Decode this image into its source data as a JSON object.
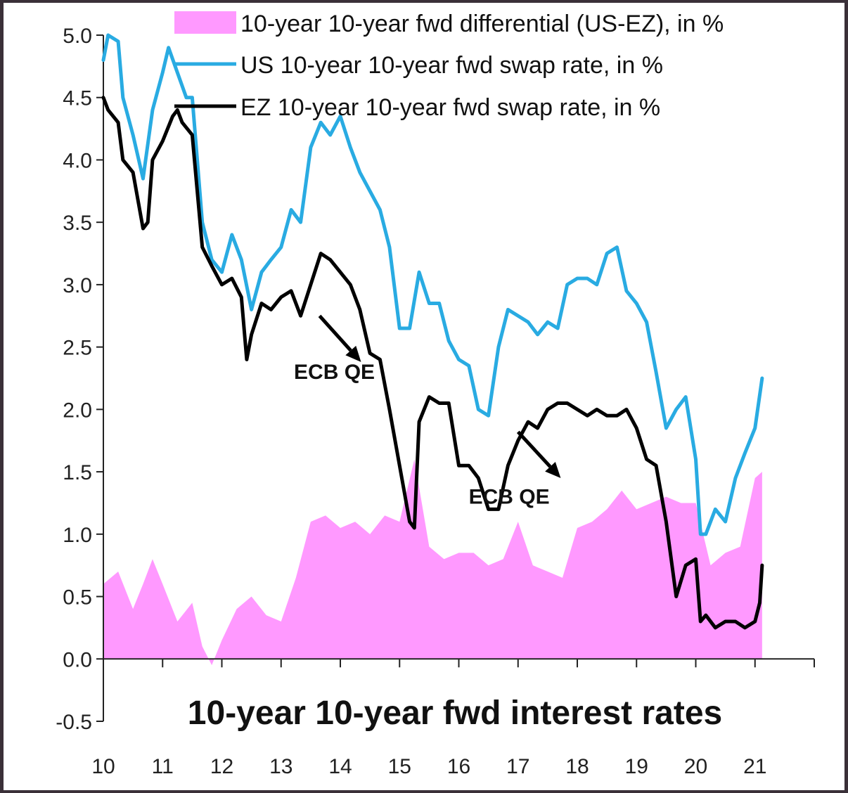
{
  "chart_data": {
    "type": "line",
    "title": "10-year 10-year fwd interest rates",
    "xlabel": "",
    "ylabel": "",
    "ylim": [
      -0.5,
      5.0
    ],
    "xlim": [
      2010,
      2022
    ],
    "yticks": [
      "-0.5",
      "0.0",
      "0.5",
      "1.0",
      "1.5",
      "2.0",
      "2.5",
      "3.0",
      "3.5",
      "4.0",
      "4.5",
      "5.0"
    ],
    "xticks": [
      "10",
      "11",
      "12",
      "13",
      "14",
      "15",
      "16",
      "17",
      "18",
      "19",
      "20",
      "21"
    ],
    "legend_position": "top-right",
    "colors": {
      "us": "#29abe2",
      "ez": "#000000",
      "diff": "#ff99ff",
      "axis": "#222222"
    },
    "series": [
      {
        "name": "10-year 10-year fwd differential (US-EZ), in %",
        "kind": "area",
        "x": [
          2010.0,
          2010.25,
          2010.5,
          2010.67,
          2010.83,
          2011.0,
          2011.25,
          2011.5,
          2011.67,
          2011.83,
          2012.0,
          2012.25,
          2012.5,
          2012.75,
          2013.0,
          2013.25,
          2013.5,
          2013.75,
          2014.0,
          2014.25,
          2014.5,
          2014.75,
          2015.0,
          2015.25,
          2015.5,
          2015.75,
          2016.0,
          2016.25,
          2016.5,
          2016.75,
          2017.0,
          2017.25,
          2017.5,
          2017.75,
          2018.0,
          2018.25,
          2018.5,
          2018.75,
          2019.0,
          2019.25,
          2019.5,
          2019.75,
          2020.0,
          2020.25,
          2020.5,
          2020.75,
          2021.0,
          2021.12
        ],
        "values": [
          0.6,
          0.7,
          0.4,
          0.6,
          0.8,
          0.6,
          0.3,
          0.45,
          0.1,
          -0.05,
          0.15,
          0.4,
          0.5,
          0.35,
          0.3,
          0.65,
          1.1,
          1.15,
          1.05,
          1.1,
          1.0,
          1.15,
          1.1,
          1.6,
          0.9,
          0.8,
          0.85,
          0.85,
          0.75,
          0.8,
          1.1,
          0.75,
          0.7,
          0.65,
          1.05,
          1.1,
          1.2,
          1.35,
          1.2,
          1.25,
          1.3,
          1.25,
          1.25,
          0.75,
          0.85,
          0.9,
          1.45,
          1.5
        ]
      },
      {
        "name": "US 10-year 10-year fwd swap rate, in %",
        "kind": "line",
        "x": [
          2010.0,
          2010.08,
          2010.25,
          2010.33,
          2010.5,
          2010.67,
          2010.83,
          2011.0,
          2011.1,
          2011.25,
          2011.4,
          2011.5,
          2011.67,
          2011.83,
          2012.0,
          2012.17,
          2012.33,
          2012.5,
          2012.67,
          2012.83,
          2013.0,
          2013.17,
          2013.33,
          2013.5,
          2013.67,
          2013.83,
          2014.0,
          2014.17,
          2014.33,
          2014.5,
          2014.67,
          2014.83,
          2015.0,
          2015.17,
          2015.33,
          2015.5,
          2015.67,
          2015.83,
          2016.0,
          2016.17,
          2016.33,
          2016.5,
          2016.67,
          2016.83,
          2017.0,
          2017.17,
          2017.33,
          2017.5,
          2017.67,
          2017.83,
          2018.0,
          2018.17,
          2018.33,
          2018.5,
          2018.67,
          2018.83,
          2019.0,
          2019.17,
          2019.33,
          2019.5,
          2019.67,
          2019.83,
          2020.0,
          2020.08,
          2020.17,
          2020.33,
          2020.5,
          2020.67,
          2020.83,
          2021.0,
          2021.12
        ],
        "values": [
          4.8,
          5.0,
          4.95,
          4.5,
          4.2,
          3.85,
          4.4,
          4.7,
          4.9,
          4.7,
          4.5,
          4.5,
          3.5,
          3.2,
          3.1,
          3.4,
          3.2,
          2.8,
          3.1,
          3.2,
          3.3,
          3.6,
          3.5,
          4.1,
          4.3,
          4.2,
          4.35,
          4.1,
          3.9,
          3.75,
          3.6,
          3.3,
          2.65,
          2.65,
          3.1,
          2.85,
          2.85,
          2.55,
          2.4,
          2.35,
          2.0,
          1.95,
          2.5,
          2.8,
          2.75,
          2.7,
          2.6,
          2.7,
          2.65,
          3.0,
          3.05,
          3.05,
          3.0,
          3.25,
          3.3,
          2.95,
          2.85,
          2.7,
          2.3,
          1.85,
          2.0,
          2.1,
          1.6,
          1.0,
          1.0,
          1.2,
          1.1,
          1.45,
          1.65,
          1.85,
          2.25
        ]
      },
      {
        "name": "EZ 10-year 10-year fwd swap rate, in %",
        "kind": "line",
        "x": [
          2010.0,
          2010.08,
          2010.25,
          2010.33,
          2010.5,
          2010.67,
          2010.75,
          2010.83,
          2011.0,
          2011.17,
          2011.25,
          2011.33,
          2011.5,
          2011.67,
          2011.83,
          2012.0,
          2012.17,
          2012.33,
          2012.42,
          2012.5,
          2012.67,
          2012.83,
          2013.0,
          2013.17,
          2013.33,
          2013.5,
          2013.67,
          2013.83,
          2014.0,
          2014.17,
          2014.33,
          2014.5,
          2014.67,
          2014.83,
          2015.0,
          2015.17,
          2015.25,
          2015.33,
          2015.5,
          2015.67,
          2015.83,
          2016.0,
          2016.17,
          2016.33,
          2016.5,
          2016.67,
          2016.83,
          2017.0,
          2017.17,
          2017.33,
          2017.5,
          2017.67,
          2017.83,
          2018.0,
          2018.17,
          2018.33,
          2018.5,
          2018.67,
          2018.83,
          2019.0,
          2019.17,
          2019.33,
          2019.5,
          2019.67,
          2019.83,
          2020.0,
          2020.08,
          2020.17,
          2020.33,
          2020.5,
          2020.67,
          2020.83,
          2021.0,
          2021.08,
          2021.12
        ],
        "values": [
          4.5,
          4.4,
          4.3,
          4.0,
          3.9,
          3.45,
          3.5,
          4.0,
          4.15,
          4.35,
          4.4,
          4.3,
          4.2,
          3.3,
          3.15,
          3.0,
          3.05,
          2.9,
          2.4,
          2.6,
          2.85,
          2.8,
          2.9,
          2.95,
          2.75,
          3.0,
          3.25,
          3.2,
          3.1,
          3.0,
          2.8,
          2.45,
          2.4,
          2.0,
          1.55,
          1.1,
          1.05,
          1.9,
          2.1,
          2.05,
          2.05,
          1.55,
          1.55,
          1.45,
          1.2,
          1.2,
          1.55,
          1.75,
          1.9,
          1.85,
          2.0,
          2.05,
          2.05,
          2.0,
          1.95,
          2.0,
          1.95,
          1.95,
          2.0,
          1.85,
          1.6,
          1.55,
          1.1,
          0.5,
          0.75,
          0.8,
          0.3,
          0.35,
          0.25,
          0.3,
          0.3,
          0.25,
          0.3,
          0.45,
          0.75
        ]
      }
    ],
    "annotations": [
      {
        "text": "ECB QE",
        "x": 2013.9,
        "y": 2.3,
        "arrow_from": [
          2013.65,
          2.75
        ],
        "arrow_to": [
          2014.35,
          2.38
        ]
      },
      {
        "text": "ECB QE",
        "x": 2016.85,
        "y": 1.3,
        "arrow_from": [
          2017.0,
          1.82
        ],
        "arrow_to": [
          2017.72,
          1.45
        ]
      }
    ]
  }
}
